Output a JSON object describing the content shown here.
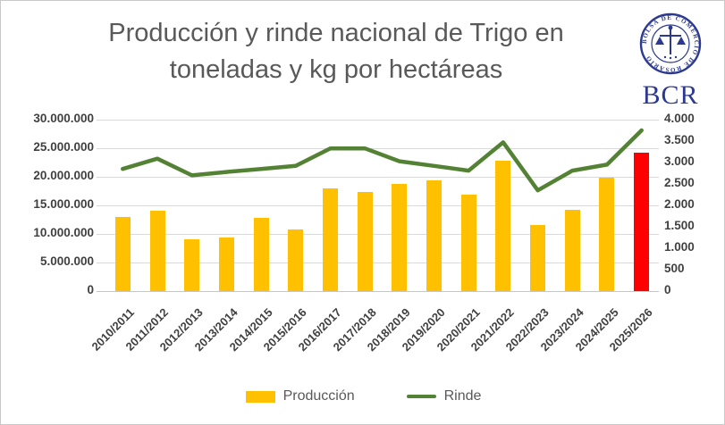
{
  "header": {
    "title_lines": [
      "Producción y rinde nacional de Trigo  en",
      "toneladas y kg por hectáreas"
    ],
    "logo": {
      "ring_text": "BOLSA DE COMERCIO DE ROSARIO",
      "monogram": "BCR",
      "color": "#2b3990"
    }
  },
  "chart_data": {
    "type": "combo",
    "title": "Producción y rinde nacional de Trigo en toneladas y kg por hectáreas",
    "categories": [
      "2010/2011",
      "2011/2012",
      "2012/2013",
      "2013/2014",
      "2014/2015",
      "2015/2016",
      "2016/2017",
      "2017/2018",
      "2018/2019",
      "2019/2020",
      "2020/2021",
      "2021/2022",
      "2022/2023",
      "2023/2024",
      "2024/2025",
      "2025/2026"
    ],
    "series": [
      {
        "name": "Producción",
        "type": "bar",
        "axis": "left",
        "unit": "toneladas",
        "color": "#ffc000",
        "highlight": {
          "index": 15,
          "color": "#ff0000"
        },
        "values": [
          12900000,
          14000000,
          9100000,
          9400000,
          12800000,
          10800000,
          18000000,
          17400000,
          18800000,
          19400000,
          16900000,
          22800000,
          11600000,
          14200000,
          19900000,
          24200000
        ]
      },
      {
        "name": "Rinde",
        "type": "line",
        "axis": "right",
        "unit": "kg/ha",
        "color": "#548235",
        "values": [
          2850,
          3090,
          2700,
          2780,
          2850,
          2920,
          3330,
          3330,
          3030,
          2920,
          2810,
          3470,
          2350,
          2810,
          2950,
          3750
        ]
      }
    ],
    "left_axis": {
      "min": 0,
      "max": 30000000,
      "tick_labels": [
        "30.000.000",
        "25.000.000",
        "20.000.000",
        "15.000.000",
        "10.000.000",
        "5.000.000",
        "0"
      ]
    },
    "right_axis": {
      "min": 0,
      "max": 4000,
      "tick_labels": [
        "4.000",
        "3.500",
        "3.000",
        "2.500",
        "2.000",
        "1.500",
        "1.000",
        "500",
        "0"
      ]
    },
    "grid": true,
    "legend_position": "bottom",
    "grid_color": "#d9d9d9",
    "text_color": "#404040",
    "title_color": "#595959"
  }
}
